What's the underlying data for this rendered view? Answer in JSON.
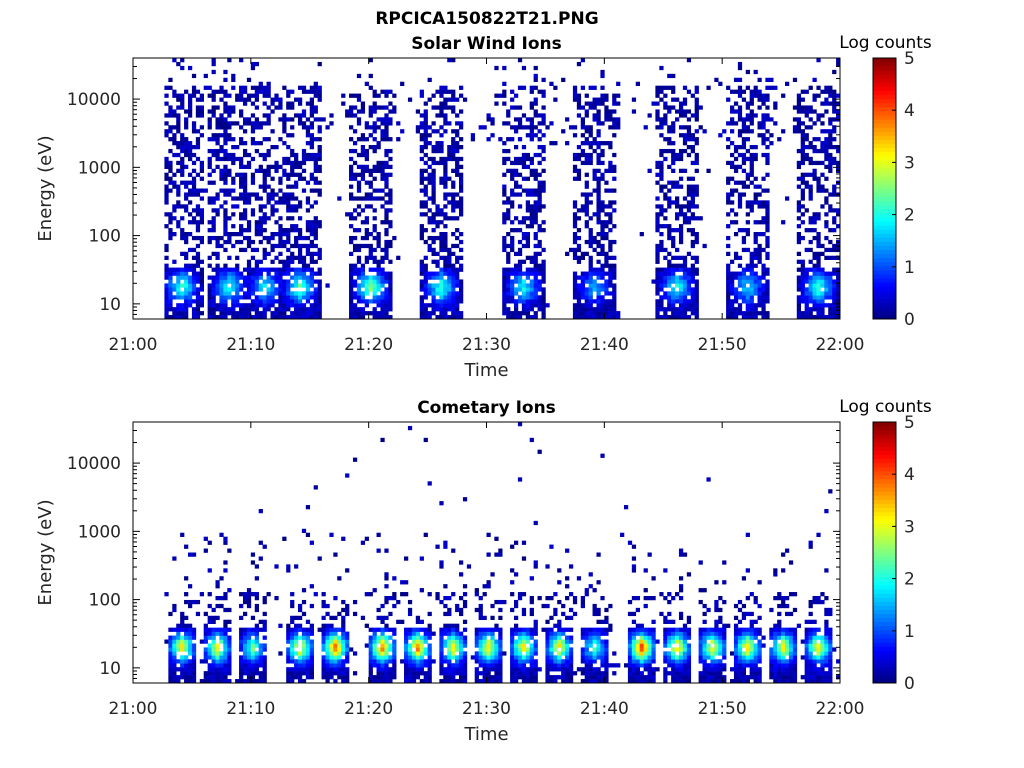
{
  "figure": {
    "title": "RPCICA150822T21.PNG"
  },
  "chart_data": [
    {
      "type": "heatmap",
      "title": "Solar Wind Ions",
      "xlabel": "Time",
      "ylabel": "Energy (eV)",
      "x_ticks": [
        "21:00",
        "21:10",
        "21:20",
        "21:30",
        "21:40",
        "21:50",
        "22:00"
      ],
      "xlim": [
        "21:00",
        "22:00"
      ],
      "y_scale": "log",
      "y_ticks": [
        "10",
        "100",
        "1000",
        "10000"
      ],
      "ylim": [
        6,
        40000
      ],
      "colorbar": {
        "label": "Log counts",
        "ticks": [
          "0",
          "1",
          "2",
          "3",
          "4",
          "5"
        ],
        "range": [
          0,
          5
        ],
        "colormap": "jet"
      },
      "peaks": [
        {
          "time": "21:04",
          "log_counts": 2.0
        },
        {
          "time": "21:08",
          "log_counts": 1.8
        },
        {
          "time": "21:11",
          "log_counts": 1.6
        },
        {
          "time": "21:14",
          "log_counts": 2.1
        },
        {
          "time": "21:20",
          "log_counts": 2.4
        },
        {
          "time": "21:26",
          "log_counts": 2.0
        },
        {
          "time": "21:33",
          "log_counts": 1.7
        },
        {
          "time": "21:39",
          "log_counts": 1.3
        },
        {
          "time": "21:46",
          "log_counts": 1.8
        },
        {
          "time": "21:52",
          "log_counts": 1.5
        },
        {
          "time": "21:58",
          "log_counts": 2.0
        }
      ]
    },
    {
      "type": "heatmap",
      "title": "Cometary Ions",
      "xlabel": "Time",
      "ylabel": "Energy (eV)",
      "x_ticks": [
        "21:00",
        "21:10",
        "21:20",
        "21:30",
        "21:40",
        "21:50",
        "22:00"
      ],
      "xlim": [
        "21:00",
        "22:00"
      ],
      "y_scale": "log",
      "y_ticks": [
        "10",
        "100",
        "1000",
        "10000"
      ],
      "ylim": [
        6,
        40000
      ],
      "colorbar": {
        "label": "Log counts",
        "ticks": [
          "0",
          "1",
          "2",
          "3",
          "4",
          "5"
        ],
        "range": [
          0,
          5
        ],
        "colormap": "jet"
      },
      "peaks": [
        {
          "time": "21:04",
          "log_counts": 3.0
        },
        {
          "time": "21:07",
          "log_counts": 3.0
        },
        {
          "time": "21:10",
          "log_counts": 2.2
        },
        {
          "time": "21:14",
          "log_counts": 3.1
        },
        {
          "time": "21:17",
          "log_counts": 3.6
        },
        {
          "time": "21:21",
          "log_counts": 3.5
        },
        {
          "time": "21:24",
          "log_counts": 3.5
        },
        {
          "time": "21:27",
          "log_counts": 3.0
        },
        {
          "time": "21:30",
          "log_counts": 3.1
        },
        {
          "time": "21:33",
          "log_counts": 3.0
        },
        {
          "time": "21:36",
          "log_counts": 3.0
        },
        {
          "time": "21:39",
          "log_counts": 2.0
        },
        {
          "time": "21:43",
          "log_counts": 3.9
        },
        {
          "time": "21:46",
          "log_counts": 3.2
        },
        {
          "time": "21:49",
          "log_counts": 3.0
        },
        {
          "time": "21:52",
          "log_counts": 3.1
        },
        {
          "time": "21:55",
          "log_counts": 3.0
        },
        {
          "time": "21:58",
          "log_counts": 3.0
        }
      ]
    }
  ]
}
